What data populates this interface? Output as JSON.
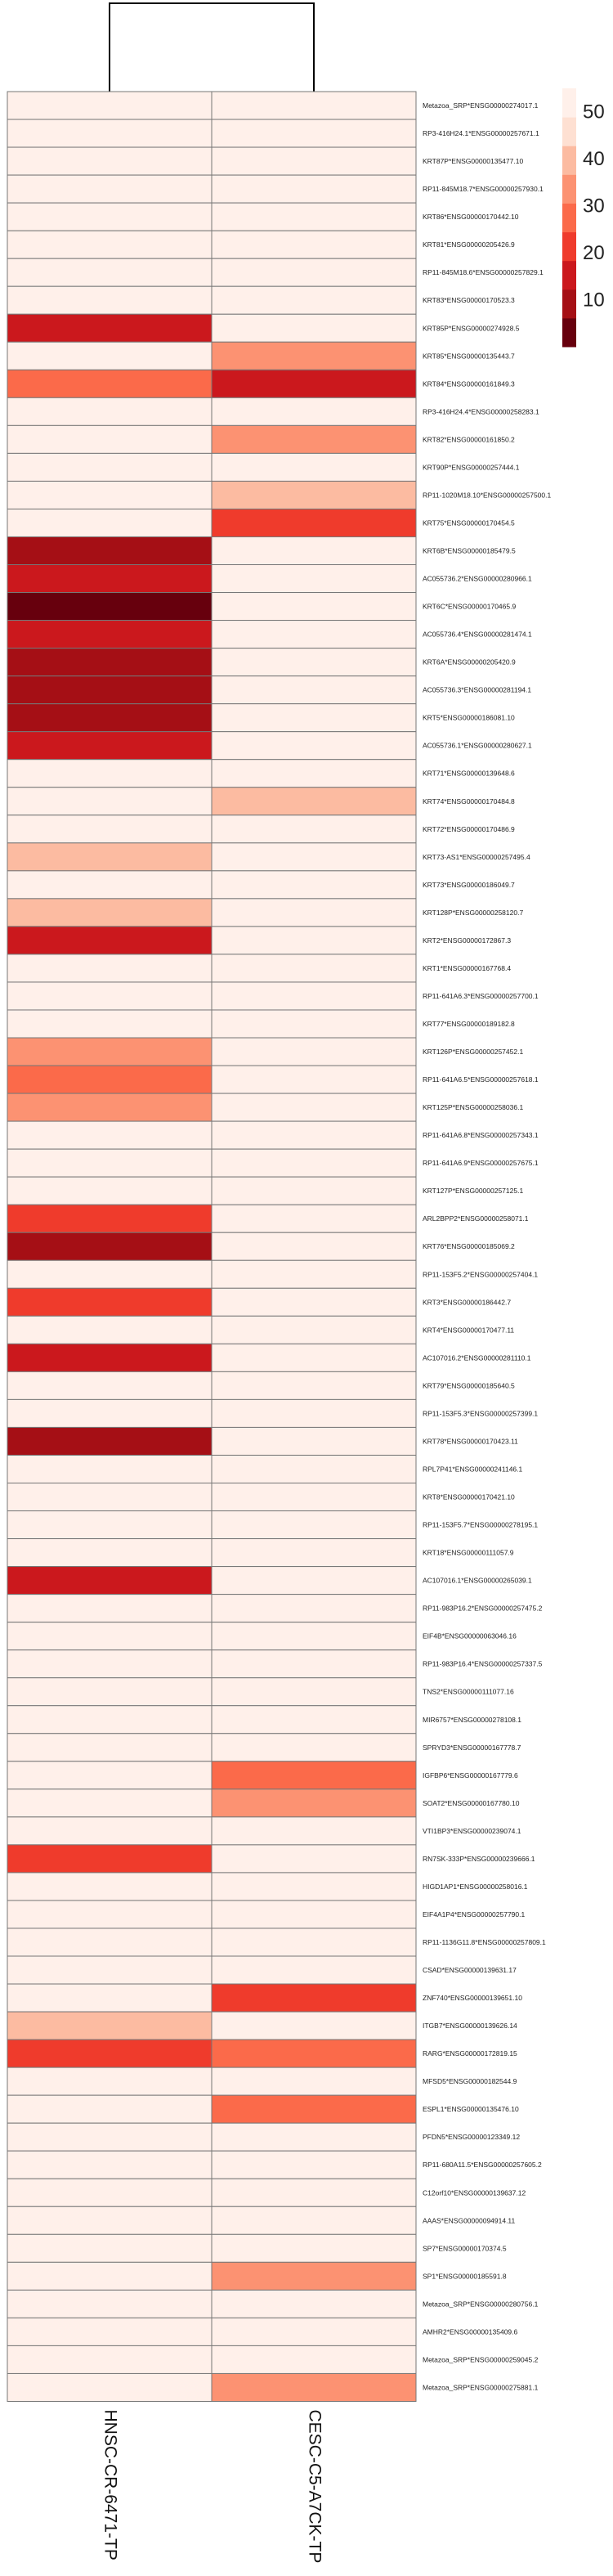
{
  "chart_data": {
    "type": "heatmap",
    "title": "",
    "columns": [
      "HNSC-CR-6471-TP",
      "CESC-C5-A7CK-TP"
    ],
    "rows": [
      "Metazoa_SRP*ENSG00000274017.1",
      "RP3-416H24.1*ENSG00000257671.1",
      "KRT87P*ENSG00000135477.10",
      "RP11-845M18.7*ENSG00000257930.1",
      "KRT86*ENSG00000170442.10",
      "KRT81*ENSG00000205426.9",
      "RP11-845M18.6*ENSG00000257829.1",
      "KRT83*ENSG00000170523.3",
      "KRT85P*ENSG00000274928.5",
      "KRT85*ENSG00000135443.7",
      "KRT84*ENSG00000161849.3",
      "RP3-416H24.4*ENSG00000258283.1",
      "KRT82*ENSG00000161850.2",
      "KRT90P*ENSG00000257444.1",
      "RP11-1020M18.10*ENSG00000257500.1",
      "KRT75*ENSG00000170454.5",
      "KRT6B*ENSG00000185479.5",
      "AC055736.2*ENSG00000280966.1",
      "KRT6C*ENSG00000170465.9",
      "AC055736.4*ENSG00000281474.1",
      "KRT6A*ENSG00000205420.9",
      "AC055736.3*ENSG00000281194.1",
      "KRT5*ENSG00000186081.10",
      "AC055736.1*ENSG00000280627.1",
      "KRT71*ENSG00000139648.6",
      "KRT74*ENSG00000170484.8",
      "KRT72*ENSG00000170486.9",
      "KRT73-AS1*ENSG00000257495.4",
      "KRT73*ENSG00000186049.7",
      "KRT128P*ENSG00000258120.7",
      "KRT2*ENSG00000172867.3",
      "KRT1*ENSG00000167768.4",
      "RP11-641A6.3*ENSG00000257700.1",
      "KRT77*ENSG00000189182.8",
      "KRT126P*ENSG00000257452.1",
      "RP11-641A6.5*ENSG00000257618.1",
      "KRT125P*ENSG00000258036.1",
      "RP11-641A6.8*ENSG00000257343.1",
      "RP11-641A6.9*ENSG00000257675.1",
      "KRT127P*ENSG00000257125.1",
      "ARL2BPP2*ENSG00000258071.1",
      "KRT76*ENSG00000185069.2",
      "RP11-153F5.2*ENSG00000257404.1",
      "KRT3*ENSG00000186442.7",
      "KRT4*ENSG00000170477.11",
      "AC107016.2*ENSG00000281110.1",
      "KRT79*ENSG00000185640.5",
      "RP11-153F5.3*ENSG00000257399.1",
      "KRT78*ENSG00000170423.11",
      "RPL7P41*ENSG00000241146.1",
      "KRT8*ENSG00000170421.10",
      "RP11-153F5.7*ENSG00000278195.1",
      "KRT18*ENSG00000111057.9",
      "AC107016.1*ENSG00000265039.1",
      "RP11-983P16.2*ENSG00000257475.2",
      "EIF4B*ENSG00000063046.16",
      "RP11-983P16.4*ENSG00000257337.5",
      "TNS2*ENSG00000111077.16",
      "MIR6757*ENSG00000278108.1",
      "SPRYD3*ENSG00000167778.7",
      "IGFBP6*ENSG00000167779.6",
      "SOAT2*ENSG00000167780.10",
      "VTI1BP3*ENSG00000239074.1",
      "RN7SK-333P*ENSG00000239666.1",
      "HIGD1AP1*ENSG00000258016.1",
      "EIF4A1P4*ENSG00000257790.1",
      "RP11-1136G11.8*ENSG00000257809.1",
      "CSAD*ENSG00000139631.17",
      "ZNF740*ENSG00000139651.10",
      "ITGB7*ENSG00000139626.14",
      "RARG*ENSG00000172819.15",
      "MFSD5*ENSG00000182544.9",
      "ESPL1*ENSG00000135476.10",
      "PFDN5*ENSG00000123349.12",
      "RP11-680A11.5*ENSG00000257605.2",
      "C12orf10*ENSG00000139637.12",
      "AAAS*ENSG00000094914.11",
      "SP7*ENSG00000170374.5",
      "SP1*ENSG00000185591.8",
      "Metazoa_SRP*ENSG00000280756.1",
      "AMHR2*ENSG00000135409.6",
      "Metazoa_SRP*ENSG00000259045.2",
      "Metazoa_SRP*ENSG00000275881.1"
    ],
    "values": [
      [
        50,
        50
      ],
      [
        50,
        50
      ],
      [
        50,
        50
      ],
      [
        50,
        50
      ],
      [
        50,
        50
      ],
      [
        50,
        50
      ],
      [
        50,
        50
      ],
      [
        50,
        50
      ],
      [
        14,
        50
      ],
      [
        50,
        35
      ],
      [
        30,
        14
      ],
      [
        50,
        50
      ],
      [
        50,
        35
      ],
      [
        50,
        50
      ],
      [
        50,
        42
      ],
      [
        50,
        23
      ],
      [
        9,
        50
      ],
      [
        14,
        50
      ],
      [
        3,
        50
      ],
      [
        14,
        50
      ],
      [
        11,
        50
      ],
      [
        11,
        50
      ],
      [
        11,
        50
      ],
      [
        14,
        50
      ],
      [
        50,
        50
      ],
      [
        50,
        42
      ],
      [
        50,
        50
      ],
      [
        42,
        50
      ],
      [
        50,
        50
      ],
      [
        42,
        50
      ],
      [
        14,
        50
      ],
      [
        50,
        50
      ],
      [
        50,
        50
      ],
      [
        50,
        50
      ],
      [
        35,
        50
      ],
      [
        30,
        50
      ],
      [
        35,
        50
      ],
      [
        50,
        50
      ],
      [
        50,
        50
      ],
      [
        50,
        50
      ],
      [
        23,
        50
      ],
      [
        9,
        50
      ],
      [
        50,
        50
      ],
      [
        23,
        50
      ],
      [
        50,
        50
      ],
      [
        14,
        50
      ],
      [
        50,
        50
      ],
      [
        50,
        50
      ],
      [
        9,
        50
      ],
      [
        50,
        50
      ],
      [
        50,
        50
      ],
      [
        50,
        50
      ],
      [
        50,
        50
      ],
      [
        14,
        50
      ],
      [
        50,
        50
      ],
      [
        50,
        50
      ],
      [
        50,
        50
      ],
      [
        50,
        50
      ],
      [
        50,
        50
      ],
      [
        50,
        50
      ],
      [
        50,
        30
      ],
      [
        50,
        35
      ],
      [
        50,
        50
      ],
      [
        23,
        50
      ],
      [
        50,
        50
      ],
      [
        50,
        50
      ],
      [
        50,
        50
      ],
      [
        50,
        50
      ],
      [
        50,
        23
      ],
      [
        42,
        50
      ],
      [
        23,
        28
      ],
      [
        50,
        50
      ],
      [
        50,
        30
      ],
      [
        50,
        50
      ],
      [
        50,
        50
      ],
      [
        50,
        50
      ],
      [
        50,
        50
      ],
      [
        50,
        50
      ],
      [
        50,
        35
      ],
      [
        50,
        50
      ],
      [
        50,
        50
      ],
      [
        50,
        50
      ],
      [
        50,
        35
      ]
    ],
    "legend": {
      "ticks": [
        50,
        40,
        30,
        20,
        10
      ],
      "colors": [
        "#67000d",
        "#a50f15",
        "#cb181d",
        "#ef3b2c",
        "#fb6a4a",
        "#fc9272",
        "#fcbba1",
        "#fee0d2",
        "#fff0ea"
      ],
      "placement": "top-right",
      "range": [
        0,
        55
      ]
    },
    "dendrogram": true
  }
}
